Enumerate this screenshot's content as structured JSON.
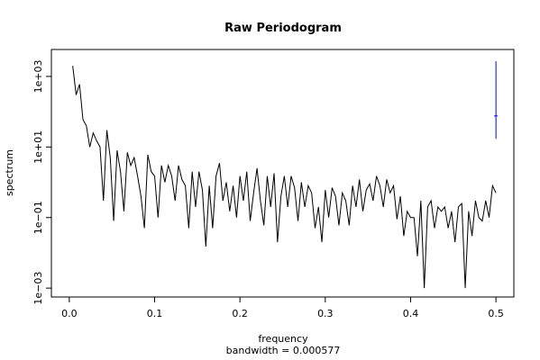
{
  "chart_data": {
    "type": "line",
    "title": "Raw Periodogram",
    "x_label": "frequency",
    "x_sublabel": "bandwidth = 0.000577",
    "y_label": "spectrum",
    "log_y": true,
    "xlim": [
      -0.021,
      0.521
    ],
    "ylim": [
      0.00056,
      5800
    ],
    "xticks": [
      {
        "value": 0,
        "label": "0.0"
      },
      0.1,
      0.2,
      0.3,
      0.4,
      0.5
    ],
    "yticks": [
      {
        "value": 0.001,
        "label": "1e−03"
      },
      {
        "value": 0.1,
        "label": "1e−01"
      },
      {
        "value": 10,
        "label": "1e+01"
      },
      {
        "value": 1000,
        "label": "1e+03"
      }
    ],
    "x": [
      0.004,
      0.008,
      0.012,
      0.016,
      0.02,
      0.024,
      0.028,
      0.032,
      0.036,
      0.04,
      0.044,
      0.048,
      0.052,
      0.056,
      0.06,
      0.064,
      0.068,
      0.072,
      0.076,
      0.08,
      0.084,
      0.088,
      0.092,
      0.096,
      0.1,
      0.104,
      0.108,
      0.112,
      0.116,
      0.12,
      0.124,
      0.128,
      0.132,
      0.136,
      0.14,
      0.144,
      0.148,
      0.152,
      0.156,
      0.16,
      0.164,
      0.168,
      0.172,
      0.176,
      0.18,
      0.184,
      0.188,
      0.192,
      0.196,
      0.2,
      0.204,
      0.208,
      0.212,
      0.216,
      0.22,
      0.224,
      0.228,
      0.232,
      0.236,
      0.24,
      0.244,
      0.248,
      0.252,
      0.256,
      0.26,
      0.264,
      0.268,
      0.272,
      0.276,
      0.28,
      0.284,
      0.288,
      0.292,
      0.296,
      0.3,
      0.304,
      0.308,
      0.312,
      0.316,
      0.32,
      0.324,
      0.328,
      0.332,
      0.336,
      0.34,
      0.344,
      0.348,
      0.352,
      0.356,
      0.36,
      0.364,
      0.368,
      0.372,
      0.376,
      0.38,
      0.384,
      0.388,
      0.392,
      0.396,
      0.4,
      0.404,
      0.408,
      0.412,
      0.416,
      0.42,
      0.424,
      0.428,
      0.432,
      0.436,
      0.44,
      0.444,
      0.448,
      0.452,
      0.456,
      0.46,
      0.464,
      0.468,
      0.472,
      0.476,
      0.48,
      0.484,
      0.488,
      0.492,
      0.496,
      0.5
    ],
    "series": [
      {
        "color": "#000000",
        "values": [
          2000,
          300,
          600,
          60,
          40,
          10,
          25,
          15,
          10,
          0.3,
          30,
          5,
          0.08,
          8,
          2,
          0.15,
          7,
          3,
          5,
          1.5,
          0.4,
          0.05,
          6,
          2,
          1.5,
          0.1,
          3,
          1,
          3,
          1.5,
          0.3,
          3,
          1.2,
          0.8,
          0.05,
          2,
          0.2,
          2,
          0.6,
          0.015,
          0.8,
          0.05,
          1.5,
          3.5,
          0.3,
          1,
          0.15,
          0.8,
          0.1,
          1.5,
          0.3,
          2,
          0.08,
          0.5,
          2.5,
          0.3,
          0.06,
          1.5,
          0.2,
          1.8,
          0.02,
          0.4,
          1.5,
          0.2,
          1.5,
          0.7,
          0.08,
          1,
          0.2,
          0.8,
          0.5,
          0.05,
          0.2,
          0.02,
          0.6,
          0.1,
          0.7,
          0.4,
          0.06,
          0.5,
          0.3,
          0.06,
          0.8,
          0.2,
          1.2,
          0.15,
          0.6,
          0.9,
          0.3,
          1.5,
          0.8,
          0.2,
          1.2,
          0.5,
          0.8,
          0.09,
          0.4,
          0.03,
          0.15,
          0.1,
          0.1,
          0.008,
          0.3,
          0.001,
          0.2,
          0.3,
          0.05,
          0.2,
          0.15,
          0.2,
          0.05,
          0.15,
          0.02,
          0.2,
          0.25,
          0.001,
          0.15,
          0.03,
          0.3,
          0.1,
          0.08,
          0.3,
          0.1,
          0.8,
          0.5
        ]
      }
    ],
    "ci_bar": {
      "x": 0.5,
      "lower": 17,
      "center": 76,
      "upper": 2700,
      "color": "#0000ff"
    }
  }
}
